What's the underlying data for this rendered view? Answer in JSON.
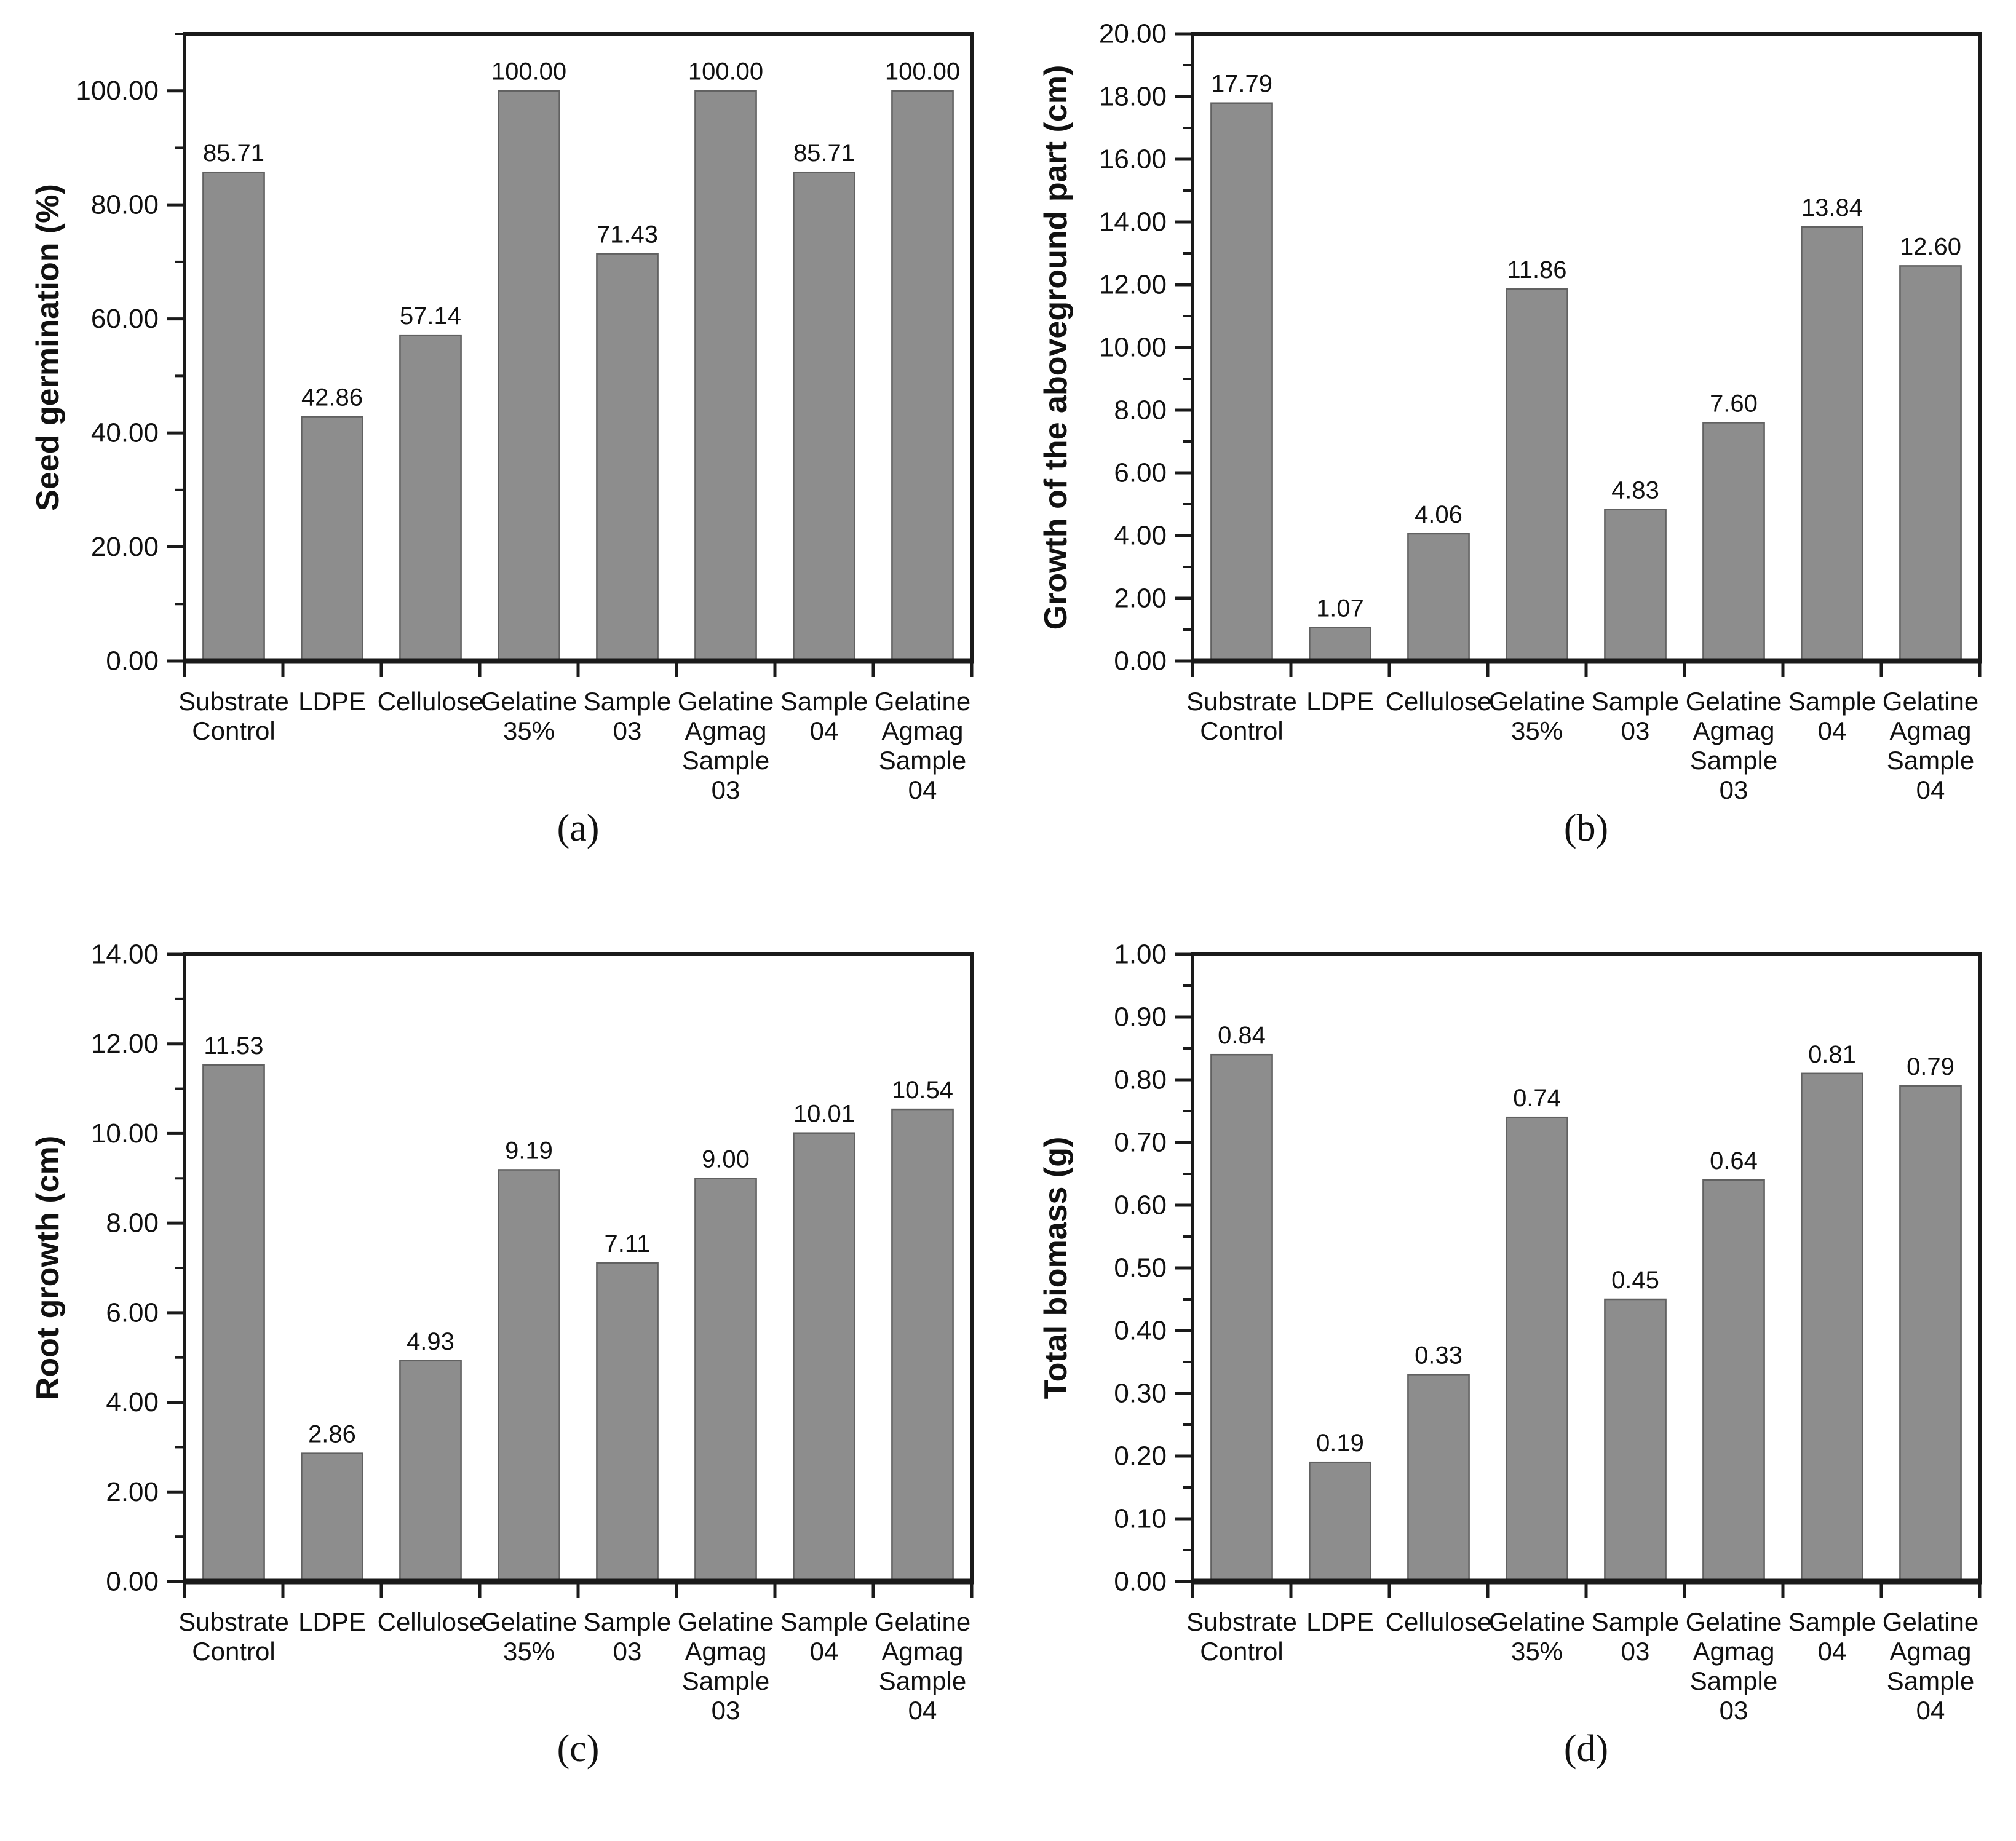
{
  "figure": {
    "background": "#ffffff",
    "bar_color": "#8d8d8d",
    "bar_edge_color": "#616161",
    "axis_color": "#1a1a1a",
    "text_color": "#111111"
  },
  "chart_data": [
    {
      "type": "bar",
      "panel": "a",
      "caption": "(a)",
      "title": "",
      "xlabel": "",
      "ylabel": "Seed germination (%)",
      "categories": [
        "Substrate Control",
        "LDPE",
        "Cellulose",
        "Gelatine 35%",
        "Sample 03",
        "Gelatine Agmag Sample 03",
        "Sample 04",
        "Gelatine Agmag Sample 04"
      ],
      "category_lines": [
        [
          "Substrate",
          "Control"
        ],
        [
          "LDPE"
        ],
        [
          "Cellulose"
        ],
        [
          "Gelatine",
          "35%"
        ],
        [
          "Sample",
          "03"
        ],
        [
          "Gelatine",
          "Agmag",
          "Sample",
          "03"
        ],
        [
          "Sample",
          "04"
        ],
        [
          "Gelatine",
          "Agmag",
          "Sample",
          "04"
        ]
      ],
      "values": [
        85.71,
        42.86,
        57.14,
        100.0,
        71.43,
        100.0,
        85.71,
        100.0
      ],
      "value_labels": [
        "85.71",
        "42.86",
        "57.14",
        "100.00",
        "71.43",
        "100.00",
        "85.71",
        "100.00"
      ],
      "ylim": [
        0,
        100
      ],
      "y_axis_max_draw": 110,
      "y_major_step": 20,
      "y_minor_step": 10,
      "grid": false,
      "legend": null
    },
    {
      "type": "bar",
      "panel": "b",
      "caption": "(b)",
      "title": "",
      "xlabel": "",
      "ylabel": "Growth of the aboveground part (cm)",
      "categories": [
        "Substrate Control",
        "LDPE",
        "Cellulose",
        "Gelatine 35%",
        "Sample 03",
        "Gelatine Agmag Sample 03",
        "Sample 04",
        "Gelatine Agmag Sample 04"
      ],
      "category_lines": [
        [
          "Substrate",
          "Control"
        ],
        [
          "LDPE"
        ],
        [
          "Cellulose"
        ],
        [
          "Gelatine",
          "35%"
        ],
        [
          "Sample",
          "03"
        ],
        [
          "Gelatine",
          "Agmag",
          "Sample",
          "03"
        ],
        [
          "Sample",
          "04"
        ],
        [
          "Gelatine",
          "Agmag",
          "Sample",
          "04"
        ]
      ],
      "values": [
        17.79,
        1.07,
        4.06,
        11.86,
        4.83,
        7.6,
        13.84,
        12.6
      ],
      "value_labels": [
        "17.79",
        "1.07",
        "4.06",
        "11.86",
        "4.83",
        "7.60",
        "13.84",
        "12.60"
      ],
      "ylim": [
        0,
        20
      ],
      "y_axis_max_draw": 20,
      "y_major_step": 2,
      "y_minor_step": 1,
      "grid": false,
      "legend": null
    },
    {
      "type": "bar",
      "panel": "c",
      "caption": "(c)",
      "title": "",
      "xlabel": "",
      "ylabel": "Root growth (cm)",
      "categories": [
        "Substrate Control",
        "LDPE",
        "Cellulose",
        "Gelatine 35%",
        "Sample 03",
        "Gelatine Agmag Sample 03",
        "Sample 04",
        "Gelatine Agmag Sample 04"
      ],
      "category_lines": [
        [
          "Substrate",
          "Control"
        ],
        [
          "LDPE"
        ],
        [
          "Cellulose"
        ],
        [
          "Gelatine",
          "35%"
        ],
        [
          "Sample",
          "03"
        ],
        [
          "Gelatine",
          "Agmag",
          "Sample",
          "03"
        ],
        [
          "Sample",
          "04"
        ],
        [
          "Gelatine",
          "Agmag",
          "Sample",
          "04"
        ]
      ],
      "values": [
        11.53,
        2.86,
        4.93,
        9.19,
        7.11,
        9.0,
        10.01,
        10.54
      ],
      "value_labels": [
        "11.53",
        "2.86",
        "4.93",
        "9.19",
        "7.11",
        "9.00",
        "10.01",
        "10.54"
      ],
      "ylim": [
        0,
        14
      ],
      "y_axis_max_draw": 14,
      "y_major_step": 2,
      "y_minor_step": 1,
      "grid": false,
      "legend": null
    },
    {
      "type": "bar",
      "panel": "d",
      "caption": "(d)",
      "title": "",
      "xlabel": "",
      "ylabel": "Total biomass (g)",
      "categories": [
        "Substrate Control",
        "LDPE",
        "Cellulose",
        "Gelatine 35%",
        "Sample 03",
        "Gelatine Agmag Sample 03",
        "Sample 04",
        "Gelatine Agmag Sample 04"
      ],
      "category_lines": [
        [
          "Substrate",
          "Control"
        ],
        [
          "LDPE"
        ],
        [
          "Cellulose"
        ],
        [
          "Gelatine",
          "35%"
        ],
        [
          "Sample",
          "03"
        ],
        [
          "Gelatine",
          "Agmag",
          "Sample",
          "03"
        ],
        [
          "Sample",
          "04"
        ],
        [
          "Gelatine",
          "Agmag",
          "Sample",
          "04"
        ]
      ],
      "values": [
        0.84,
        0.19,
        0.33,
        0.74,
        0.45,
        0.64,
        0.81,
        0.79
      ],
      "value_labels": [
        "0.84",
        "0.19",
        "0.33",
        "0.74",
        "0.45",
        "0.64",
        "0.81",
        "0.79"
      ],
      "ylim": [
        0,
        1
      ],
      "y_axis_max_draw": 1,
      "y_major_step": 0.1,
      "y_minor_step": 0.05,
      "grid": false,
      "legend": null
    }
  ]
}
